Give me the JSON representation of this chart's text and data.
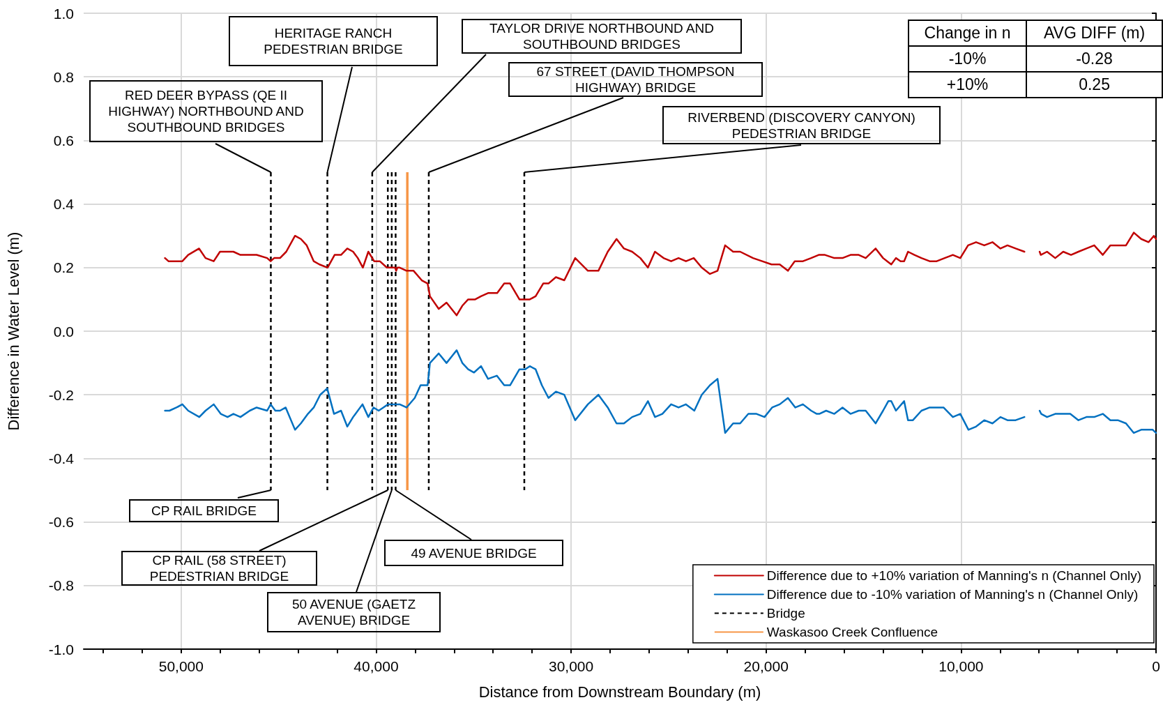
{
  "chart_data": {
    "type": "line",
    "xlabel": "Distance from Downstream Boundary (m)",
    "ylabel": "Difference in Water Level (m)",
    "xlim": [
      55000,
      0
    ],
    "xticks": [
      {
        "value": 54000,
        "label": null
      },
      {
        "value": 52000,
        "label": null
      },
      {
        "value": 50000,
        "label": "50,000"
      },
      {
        "value": 48000,
        "label": null
      },
      {
        "value": 46000,
        "label": null
      },
      {
        "value": 44000,
        "label": null
      },
      {
        "value": 42000,
        "label": null
      },
      {
        "value": 40000,
        "label": "40,000"
      },
      {
        "value": 38000,
        "label": null
      },
      {
        "value": 36000,
        "label": null
      },
      {
        "value": 34000,
        "label": null
      },
      {
        "value": 32000,
        "label": null
      },
      {
        "value": 30000,
        "label": "30,000"
      },
      {
        "value": 28000,
        "label": null
      },
      {
        "value": 26000,
        "label": null
      },
      {
        "value": 24000,
        "label": null
      },
      {
        "value": 22000,
        "label": null
      },
      {
        "value": 20000,
        "label": "20,000"
      },
      {
        "value": 18000,
        "label": null
      },
      {
        "value": 16000,
        "label": null
      },
      {
        "value": 14000,
        "label": null
      },
      {
        "value": 12000,
        "label": null
      },
      {
        "value": 10000,
        "label": "10,000"
      },
      {
        "value": 8000,
        "label": null
      },
      {
        "value": 6000,
        "label": null
      },
      {
        "value": 4000,
        "label": null
      },
      {
        "value": 2000,
        "label": null
      },
      0
    ],
    "ylim": [
      -1,
      1
    ],
    "yticks": [
      {
        "value": -1,
        "label": "-1.0"
      },
      {
        "value": -0.8,
        "label": "-0.8"
      },
      {
        "value": -0.6,
        "label": "-0.6"
      },
      {
        "value": -0.4,
        "label": "-0.4"
      },
      {
        "value": -0.2,
        "label": "-0.2"
      },
      {
        "value": 0,
        "label": "0.0"
      },
      {
        "value": 0.2,
        "label": "0.2"
      },
      {
        "value": 0.4,
        "label": "0.4"
      },
      {
        "value": 0.6,
        "label": "0.6"
      },
      {
        "value": 0.8,
        "label": "0.8"
      },
      {
        "value": 1,
        "label": "1.0"
      }
    ],
    "grid": true,
    "legend": "bottom right",
    "line_style": "solid",
    "series": [
      {
        "name": "Difference due to +10% variation of Manning's n (Channel Only)",
        "color": "#c00000",
        "x": [
          50830,
          50650,
          49940,
          49640,
          49080,
          48750,
          48330,
          48010,
          47320,
          46960,
          46130,
          45590,
          45410,
          45230,
          44930,
          44610,
          44160,
          43860,
          43560,
          43200,
          42910,
          42490,
          42130,
          41800,
          41480,
          41180,
          40940,
          40680,
          40400,
          40100,
          39810,
          39450,
          39030,
          38970,
          38910,
          38790,
          38440,
          38080,
          37660,
          37360,
          37240,
          36790,
          36390,
          35870,
          35580,
          35280,
          34920,
          34620,
          34260,
          33790,
          33430,
          33130,
          32650,
          32120,
          31820,
          31430,
          31160,
          30780,
          30350,
          29790,
          29140,
          28600,
          28120,
          27670,
          27290,
          26870,
          26450,
          26060,
          25700,
          25260,
          24870,
          24490,
          24110,
          23710,
          23300,
          22880,
          22490,
          22100,
          21690,
          21330,
          20670,
          20200,
          19720,
          19300,
          18880,
          18530,
          18110,
          17690,
          17300,
          16980,
          16500,
          16080,
          15670,
          15250,
          14890,
          14380,
          14000,
          13580,
          13340,
          13100,
          12920,
          12720,
          12390,
          12030,
          11610,
          11250,
          10840,
          10420,
          10040,
          9640,
          9230,
          8810,
          8390,
          7980,
          7620,
          7200,
          6750,
          6400,
          5970,
          5910,
          5590,
          5170,
          4760,
          4360,
          3980,
          3570,
          3170,
          2730,
          2340,
          1540,
          1140,
          760,
          380,
          110,
          0
        ],
        "values": [
          0.23,
          0.22,
          0.22,
          0.24,
          0.26,
          0.23,
          0.22,
          0.25,
          0.25,
          0.24,
          0.24,
          0.23,
          0.22,
          0.23,
          0.23,
          0.25,
          0.3,
          0.29,
          0.27,
          0.22,
          0.21,
          0.2,
          0.24,
          0.24,
          0.26,
          0.25,
          0.23,
          0.2,
          0.25,
          0.22,
          0.22,
          0.2,
          0.2,
          0.19,
          0.2,
          0.2,
          0.19,
          0.19,
          0.16,
          0.15,
          0.11,
          0.07,
          0.09,
          0.05,
          0.08,
          0.1,
          0.1,
          0.11,
          0.12,
          0.12,
          0.15,
          0.15,
          0.1,
          0.1,
          0.11,
          0.15,
          0.15,
          0.17,
          0.16,
          0.23,
          0.19,
          0.19,
          0.25,
          0.29,
          0.26,
          0.25,
          0.23,
          0.2,
          0.25,
          0.23,
          0.22,
          0.23,
          0.22,
          0.23,
          0.2,
          0.18,
          0.19,
          0.27,
          0.25,
          0.25,
          0.23,
          0.22,
          0.21,
          0.21,
          0.19,
          0.22,
          0.22,
          0.23,
          0.24,
          0.24,
          0.23,
          0.23,
          0.24,
          0.24,
          0.23,
          0.26,
          0.23,
          0.21,
          0.23,
          0.22,
          0.22,
          0.25,
          0.24,
          0.23,
          0.22,
          0.22,
          0.23,
          0.24,
          0.23,
          0.27,
          0.28,
          0.27,
          0.28,
          0.26,
          0.27,
          0.26,
          0.25,
          null,
          0.25,
          0.24,
          0.25,
          0.23,
          0.25,
          0.24,
          0.25,
          0.26,
          0.27,
          0.24,
          0.27,
          0.27,
          0.31,
          0.29,
          0.28,
          0.3,
          0.29
        ]
      },
      {
        "name": "Difference due to -10% variation of Manning's n (Channel Only)",
        "color": "#0070c0",
        "x": [
          50830,
          50600,
          50240,
          49940,
          49640,
          49070,
          48750,
          48330,
          47970,
          47620,
          47320,
          46960,
          46480,
          46130,
          45590,
          45410,
          45170,
          44930,
          44640,
          44160,
          43860,
          43500,
          43200,
          42870,
          42510,
          42160,
          41800,
          41480,
          41180,
          40700,
          40400,
          40130,
          39870,
          39630,
          39390,
          39150,
          38790,
          38440,
          38020,
          37720,
          37360,
          37240,
          36790,
          36390,
          35870,
          35580,
          35280,
          34980,
          34620,
          34260,
          33810,
          33430,
          33130,
          32650,
          32360,
          32120,
          31820,
          31500,
          31160,
          30780,
          30350,
          29790,
          29140,
          28600,
          28120,
          27670,
          27290,
          26870,
          26450,
          26060,
          25700,
          25320,
          24870,
          24490,
          24110,
          23680,
          23300,
          22880,
          22490,
          22100,
          21690,
          21330,
          20910,
          20490,
          20080,
          19690,
          19300,
          18880,
          18500,
          18110,
          17690,
          17400,
          17270,
          16920,
          16500,
          16080,
          15670,
          15250,
          14890,
          14380,
          14000,
          13730,
          13580,
          13340,
          12920,
          12720,
          12470,
          12030,
          11610,
          10900,
          10420,
          10040,
          9620,
          9230,
          8810,
          8390,
          7980,
          7620,
          7200,
          6750,
          6400,
          5970,
          5890,
          5590,
          5170,
          4400,
          3980,
          3570,
          3170,
          2730,
          2340,
          1960,
          1540,
          1140,
          760,
          170,
          0
        ],
        "values": [
          -0.25,
          -0.25,
          -0.24,
          -0.23,
          -0.25,
          -0.27,
          -0.25,
          -0.23,
          -0.26,
          -0.27,
          -0.26,
          -0.27,
          -0.25,
          -0.24,
          -0.25,
          -0.23,
          -0.25,
          -0.25,
          -0.24,
          -0.31,
          -0.29,
          -0.26,
          -0.24,
          -0.2,
          -0.18,
          -0.26,
          -0.25,
          -0.3,
          -0.27,
          -0.23,
          -0.27,
          -0.24,
          -0.25,
          -0.24,
          -0.23,
          -0.23,
          -0.23,
          -0.24,
          -0.21,
          -0.17,
          -0.17,
          -0.1,
          -0.07,
          -0.1,
          -0.06,
          -0.1,
          -0.12,
          -0.13,
          -0.11,
          -0.15,
          -0.14,
          -0.17,
          -0.17,
          -0.12,
          -0.12,
          -0.11,
          -0.12,
          -0.17,
          -0.21,
          -0.19,
          -0.2,
          -0.28,
          -0.23,
          -0.2,
          -0.24,
          -0.29,
          -0.29,
          -0.27,
          -0.26,
          -0.22,
          -0.27,
          -0.26,
          -0.23,
          -0.24,
          -0.23,
          -0.25,
          -0.2,
          -0.17,
          -0.15,
          -0.32,
          -0.29,
          -0.29,
          -0.26,
          -0.26,
          -0.27,
          -0.24,
          -0.23,
          -0.21,
          -0.24,
          -0.23,
          -0.25,
          -0.26,
          -0.26,
          -0.25,
          -0.26,
          -0.24,
          -0.26,
          -0.25,
          -0.25,
          -0.29,
          -0.25,
          -0.22,
          -0.22,
          -0.25,
          -0.22,
          -0.28,
          -0.28,
          -0.25,
          -0.24,
          -0.24,
          -0.27,
          -0.26,
          -0.31,
          -0.3,
          -0.28,
          -0.29,
          -0.27,
          -0.28,
          -0.28,
          -0.27,
          null,
          -0.25,
          -0.26,
          -0.27,
          -0.26,
          -0.26,
          -0.28,
          -0.27,
          -0.27,
          -0.26,
          -0.28,
          -0.28,
          -0.29,
          -0.32,
          -0.31,
          -0.31,
          -0.32
        ]
      }
    ],
    "ref_lines": [
      {
        "axis": "x",
        "value": 45400,
        "label": "Bridge",
        "color": "#000000",
        "line_style": "dashed"
      },
      {
        "axis": "x",
        "value": 42500,
        "color": "#000000",
        "line_style": "dashed"
      },
      {
        "axis": "x",
        "value": 40200,
        "color": "#000000",
        "line_style": "dashed"
      },
      {
        "axis": "x",
        "value": 39400,
        "color": "#000000",
        "line_style": "dashed"
      },
      {
        "axis": "x",
        "value": 39200,
        "color": "#000000",
        "line_style": "dashed"
      },
      {
        "axis": "x",
        "value": 39000,
        "color": "#000000",
        "line_style": "dashed"
      },
      {
        "axis": "x",
        "value": 37300,
        "color": "#000000",
        "line_style": "dashed"
      },
      {
        "axis": "x",
        "value": 32400,
        "color": "#000000",
        "line_style": "dashed"
      },
      {
        "axis": "x",
        "value": 38400,
        "label": "Waskasoo Creek Confluence",
        "color": "#f79646",
        "line_style": "solid"
      }
    ],
    "annotations": [
      {
        "text": "RED DEER BYPASS (QE II HIGHWAY) NORTHBOUND AND SOUTHBOUND BRIDGES",
        "x": 45400,
        "y": 0.5
      },
      {
        "text": "HERITAGE RANCH PEDESTRIAN BRIDGE",
        "x": 42500,
        "y": 0.5
      },
      {
        "text": "TAYLOR DRIVE NORTHBOUND AND SOUTHBOUND BRIDGES",
        "x": 40200,
        "y": 0.5
      },
      {
        "text": "67 STREET (DAVID THOMPSON HIGHWAY) BRIDGE",
        "x": 37300,
        "y": 0.5
      },
      {
        "text": "RIVERBEND (DISCOVERY CANYON) PEDESTRIAN BRIDGE",
        "x": 32400,
        "y": 0.5
      },
      {
        "text": "CP RAIL BRIDGE",
        "x": 45400,
        "y": -0.5
      },
      {
        "text": "CP RAIL (58 STREET) PEDESTRIAN BRIDGE",
        "x": 39400,
        "y": -0.5
      },
      {
        "text": "50 AVENUE (GAETZ AVENUE) BRIDGE",
        "x": 39200,
        "y": -0.5
      },
      {
        "text": "49 AVENUE BRIDGE",
        "x": 39000,
        "y": -0.5
      },
      "Change in n",
      "AVG DIFF (m)",
      "-10%",
      "-0.28",
      "+10%",
      "0.25"
    ]
  }
}
